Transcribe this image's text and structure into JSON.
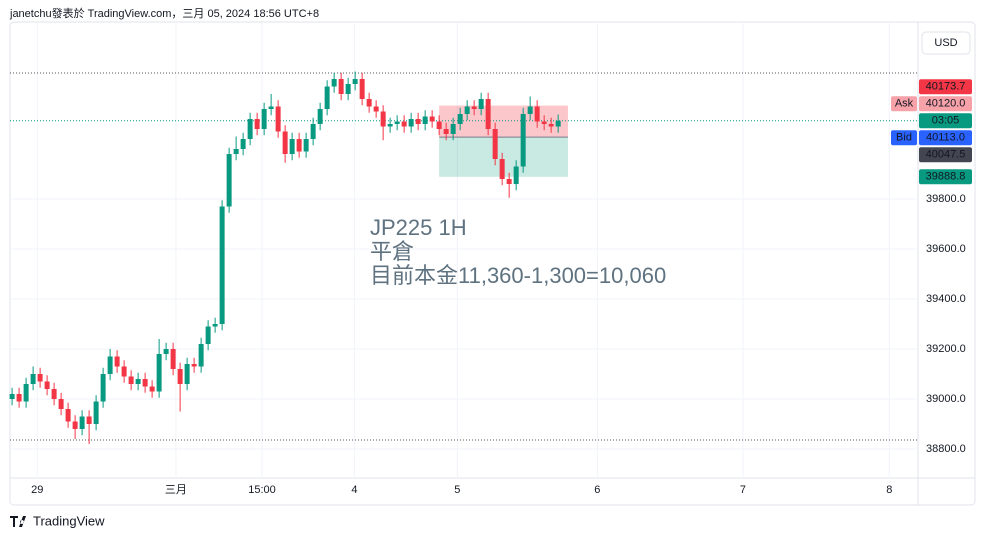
{
  "chart_data": {
    "type": "candlestick",
    "header": "janetchu發表於 TradingView.com，三月 05, 2024 18:56 UTC+8",
    "footer": "TradingView",
    "currency": "USD",
    "annotation": [
      "JP225 1H",
      "平倉",
      "目前本金11,360-1,300=10,060"
    ],
    "up_color": "#089981",
    "down_color": "#f23645",
    "grid": true,
    "xlim": [
      -0.3,
      129.4
    ],
    "ylim": [
      38684,
      40508
    ],
    "xticks": [
      {
        "value": 3.6,
        "label": "29"
      },
      {
        "value": 23.4,
        "label": "三月"
      },
      {
        "value": 35.7,
        "label": "15:00"
      },
      {
        "value": 48.9,
        "label": "4"
      },
      {
        "value": 63.6,
        "label": "5"
      },
      {
        "value": 83.6,
        "label": "6"
      },
      {
        "value": 104.4,
        "label": "7"
      },
      {
        "value": 125.3,
        "label": "8"
      }
    ],
    "yticks": [
      {
        "value": 38800,
        "label": "38800.0"
      },
      {
        "value": 39000,
        "label": "39000.0"
      },
      {
        "value": 39200,
        "label": "39200.0"
      },
      {
        "value": 39400,
        "label": "39400.0"
      },
      {
        "value": 39600,
        "label": "39600.0"
      },
      {
        "value": 39800,
        "label": "39800.0"
      }
    ],
    "hlines": [
      40304,
      38836
    ],
    "series": [
      {
        "open": [
          39000,
          39020,
          38990,
          39060,
          39100,
          39070,
          39040,
          39000,
          38960,
          38910,
          38880,
          38930,
          38900,
          38990,
          39100,
          39170,
          39130,
          39090,
          39060,
          39080,
          39050,
          39030,
          39180,
          39200,
          39120,
          39060,
          39140,
          39130,
          39220,
          39290,
          39300,
          39770,
          39980,
          40000,
          40040,
          40120,
          40080,
          40160,
          40170,
          40070,
          39980,
          40040,
          39990,
          40040,
          40100,
          40160,
          40250,
          40280,
          40220,
          40260,
          40280,
          40200,
          40170,
          40150,
          40090,
          40100,
          40110,
          40090,
          40120,
          40100,
          40130,
          40110,
          40080,
          40060,
          40100,
          40140,
          40170,
          40160,
          40200,
          40080,
          39960,
          39880,
          39860,
          39930,
          40140,
          40170,
          40110,
          40100,
          40090
        ],
        "high": [
          39045,
          39045,
          39085,
          39130,
          39125,
          39095,
          39065,
          39025,
          38985,
          38935,
          38955,
          38955,
          39015,
          39125,
          39200,
          39195,
          39155,
          39115,
          39105,
          39105,
          39075,
          39240,
          39225,
          39225,
          39145,
          39165,
          39165,
          39245,
          39315,
          39325,
          39795,
          40005,
          40050,
          40065,
          40145,
          40145,
          40185,
          40220,
          40195,
          40095,
          40065,
          40065,
          40065,
          40125,
          40185,
          40275,
          40305,
          40305,
          40285,
          40310,
          40305,
          40225,
          40195,
          40175,
          40125,
          40135,
          40135,
          40145,
          40145,
          40155,
          40155,
          40135,
          40105,
          40125,
          40165,
          40195,
          40195,
          40225,
          40225,
          40105,
          39985,
          39905,
          39955,
          40165,
          40210,
          40195,
          40135,
          40125,
          40138
        ],
        "low": [
          38975,
          38965,
          38965,
          39035,
          39045,
          39015,
          38975,
          38935,
          38885,
          38840,
          38855,
          38820,
          38875,
          38965,
          39075,
          39105,
          39065,
          39035,
          39035,
          39025,
          39005,
          39005,
          39155,
          39095,
          38950,
          39035,
          39105,
          39105,
          39195,
          39265,
          39275,
          39745,
          39955,
          39975,
          40015,
          40055,
          40055,
          40135,
          40045,
          39945,
          39955,
          39965,
          39965,
          40015,
          40075,
          40135,
          40225,
          40195,
          40195,
          40235,
          40175,
          40145,
          40125,
          40035,
          40065,
          40075,
          40065,
          40065,
          40075,
          40075,
          40085,
          40055,
          40035,
          40035,
          40075,
          40115,
          40135,
          40135,
          40055,
          39935,
          39855,
          39805,
          39835,
          39905,
          40115,
          40085,
          40075,
          40065,
          40065
        ],
        "close": [
          39020,
          38990,
          39060,
          39100,
          39070,
          39040,
          39000,
          38960,
          38910,
          38880,
          38930,
          38900,
          38990,
          39100,
          39170,
          39130,
          39090,
          39060,
          39080,
          39050,
          39030,
          39180,
          39200,
          39120,
          39060,
          39140,
          39130,
          39220,
          39290,
          39300,
          39770,
          39980,
          40000,
          40040,
          40120,
          40080,
          40160,
          40170,
          40070,
          39980,
          40040,
          39990,
          40040,
          40100,
          40160,
          40250,
          40280,
          40220,
          40260,
          40280,
          40200,
          40170,
          40150,
          40090,
          40100,
          40110,
          40090,
          40120,
          40100,
          40130,
          40110,
          40080,
          40060,
          40100,
          40140,
          40170,
          40160,
          40200,
          40080,
          39960,
          39880,
          39860,
          39930,
          40140,
          40170,
          40110,
          40100,
          40090,
          40113
        ]
      }
    ],
    "position": {
      "x_start": 61,
      "x_end": 79.4,
      "target": 40173.7,
      "entry": 40047.5,
      "stop": 39888.8
    },
    "ask": {
      "tag": "Ask",
      "value": 40120,
      "label": "40120.0"
    },
    "bid": {
      "tag": "Bid",
      "value": 40113,
      "label": "40113.0"
    },
    "countdown": "03:05"
  }
}
